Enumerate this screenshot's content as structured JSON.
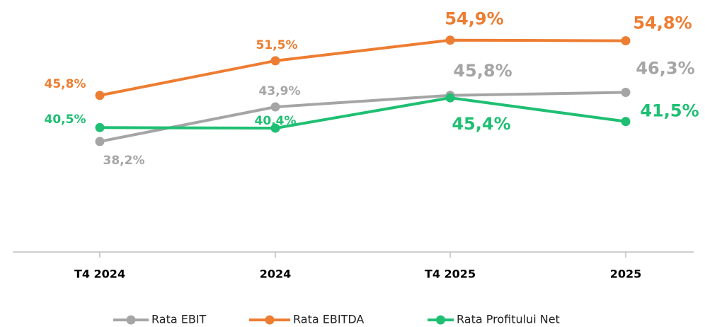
{
  "chart_data": {
    "type": "line",
    "categories": [
      "T4 2024",
      "2024",
      "T4 2025",
      "2025"
    ],
    "series": [
      {
        "name": "Rata EBIT",
        "color": "#a5a5a5",
        "values": [
          38.2,
          43.9,
          45.8,
          46.3
        ],
        "value_labels": [
          "38,2%",
          "43,9%",
          "45,8%",
          "46,3%"
        ]
      },
      {
        "name": "Rata EBITDA",
        "color": "#ed7d31",
        "values": [
          45.8,
          51.5,
          54.9,
          54.8
        ],
        "value_labels": [
          "45,8%",
          "51,5%",
          "54,9%",
          "54,8%"
        ]
      },
      {
        "name": "Rata Profitului Net",
        "color": "#1fbf73",
        "values": [
          40.5,
          40.4,
          45.4,
          41.5
        ],
        "value_labels": [
          "40,5%",
          "40,4%",
          "45,4%",
          "41,5%"
        ]
      }
    ],
    "ylim": [
      20,
      60
    ],
    "legend": "bottom"
  }
}
